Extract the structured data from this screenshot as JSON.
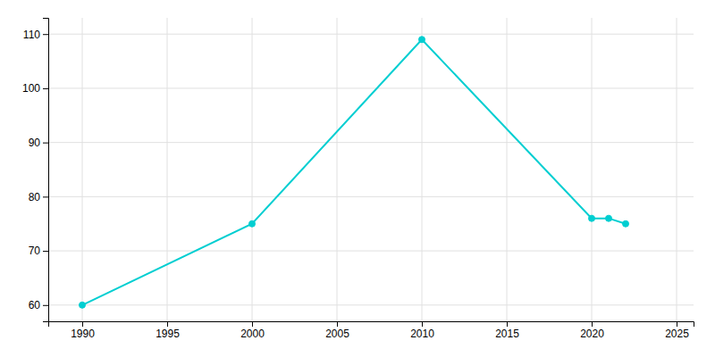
{
  "chart_data": {
    "type": "line",
    "x": [
      1990,
      2000,
      2010,
      2020,
      2021,
      2022
    ],
    "values": [
      60,
      75,
      109,
      76,
      76,
      75
    ],
    "color": "#00CED1",
    "marker": "circle",
    "xlim": [
      1988,
      2026
    ],
    "ylim": [
      57,
      113
    ],
    "xticks": [
      1990,
      1995,
      2000,
      2005,
      2010,
      2015,
      2020,
      2025
    ],
    "yticks": [
      60,
      70,
      80,
      90,
      100,
      110
    ],
    "grid": true
  }
}
